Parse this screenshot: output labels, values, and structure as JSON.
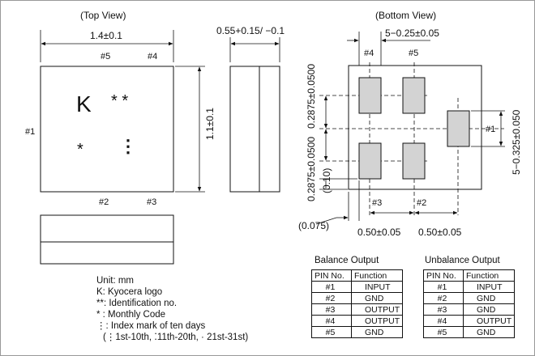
{
  "top_view": {
    "title": "(Top View)",
    "width_dim": "1.4±0.1",
    "height_dim": "1.1±0.1",
    "pin_labels": {
      "p1": "#1",
      "p2": "#2",
      "p3": "#3",
      "p4": "#4",
      "p5": "#5"
    },
    "logo_text": "K",
    "id_mark": "* *",
    "month_mark": "*",
    "index_mark": "⋮"
  },
  "side_view": {
    "thickness_dim": "0.55+0.15/ −0.1"
  },
  "bottom_view": {
    "title": "(Bottom View)",
    "pad_width_dim": "5−0.25±0.05",
    "pad1_height_dim": "5−0.325±0.050",
    "pad_pitch_top_dim": "0.2875±0.0500",
    "pad_pitch_bottom_dim": "0.2875±0.0500",
    "pad_offset_dim": "(0.10)",
    "edge_offset_dim": "(0.075)",
    "pad_spacing_left_dim": "0.50±0.05",
    "pad_spacing_right_dim": "0.50±0.05",
    "pin_labels": {
      "p1": "#1",
      "p2": "#2",
      "p3": "#3",
      "p4": "#4",
      "p5": "#5"
    }
  },
  "notes": {
    "unit": "Unit: mm",
    "k": "K: Kyocera logo",
    "id": "**: Identification no.",
    "monthly": " * : Monthly Code",
    "index": "⋮:  Index mark of ten days",
    "index_detail": "(⋮1st-10th, ⁚11th-20th, · 21st-31st)"
  },
  "balance_table": {
    "caption": "Balance Output",
    "headers": [
      "PIN No.",
      "Function"
    ],
    "rows": [
      [
        "#1",
        "INPUT"
      ],
      [
        "#2",
        "GND"
      ],
      [
        "#3",
        "OUTPUT"
      ],
      [
        "#4",
        "OUTPUT"
      ],
      [
        "#5",
        "GND"
      ]
    ]
  },
  "unbalance_table": {
    "caption": "Unbalance Output",
    "headers": [
      "PIN No.",
      "Function"
    ],
    "rows": [
      [
        "#1",
        "INPUT"
      ],
      [
        "#2",
        "GND"
      ],
      [
        "#3",
        "GND"
      ],
      [
        "#4",
        "OUTPUT"
      ],
      [
        "#5",
        "GND"
      ]
    ]
  }
}
